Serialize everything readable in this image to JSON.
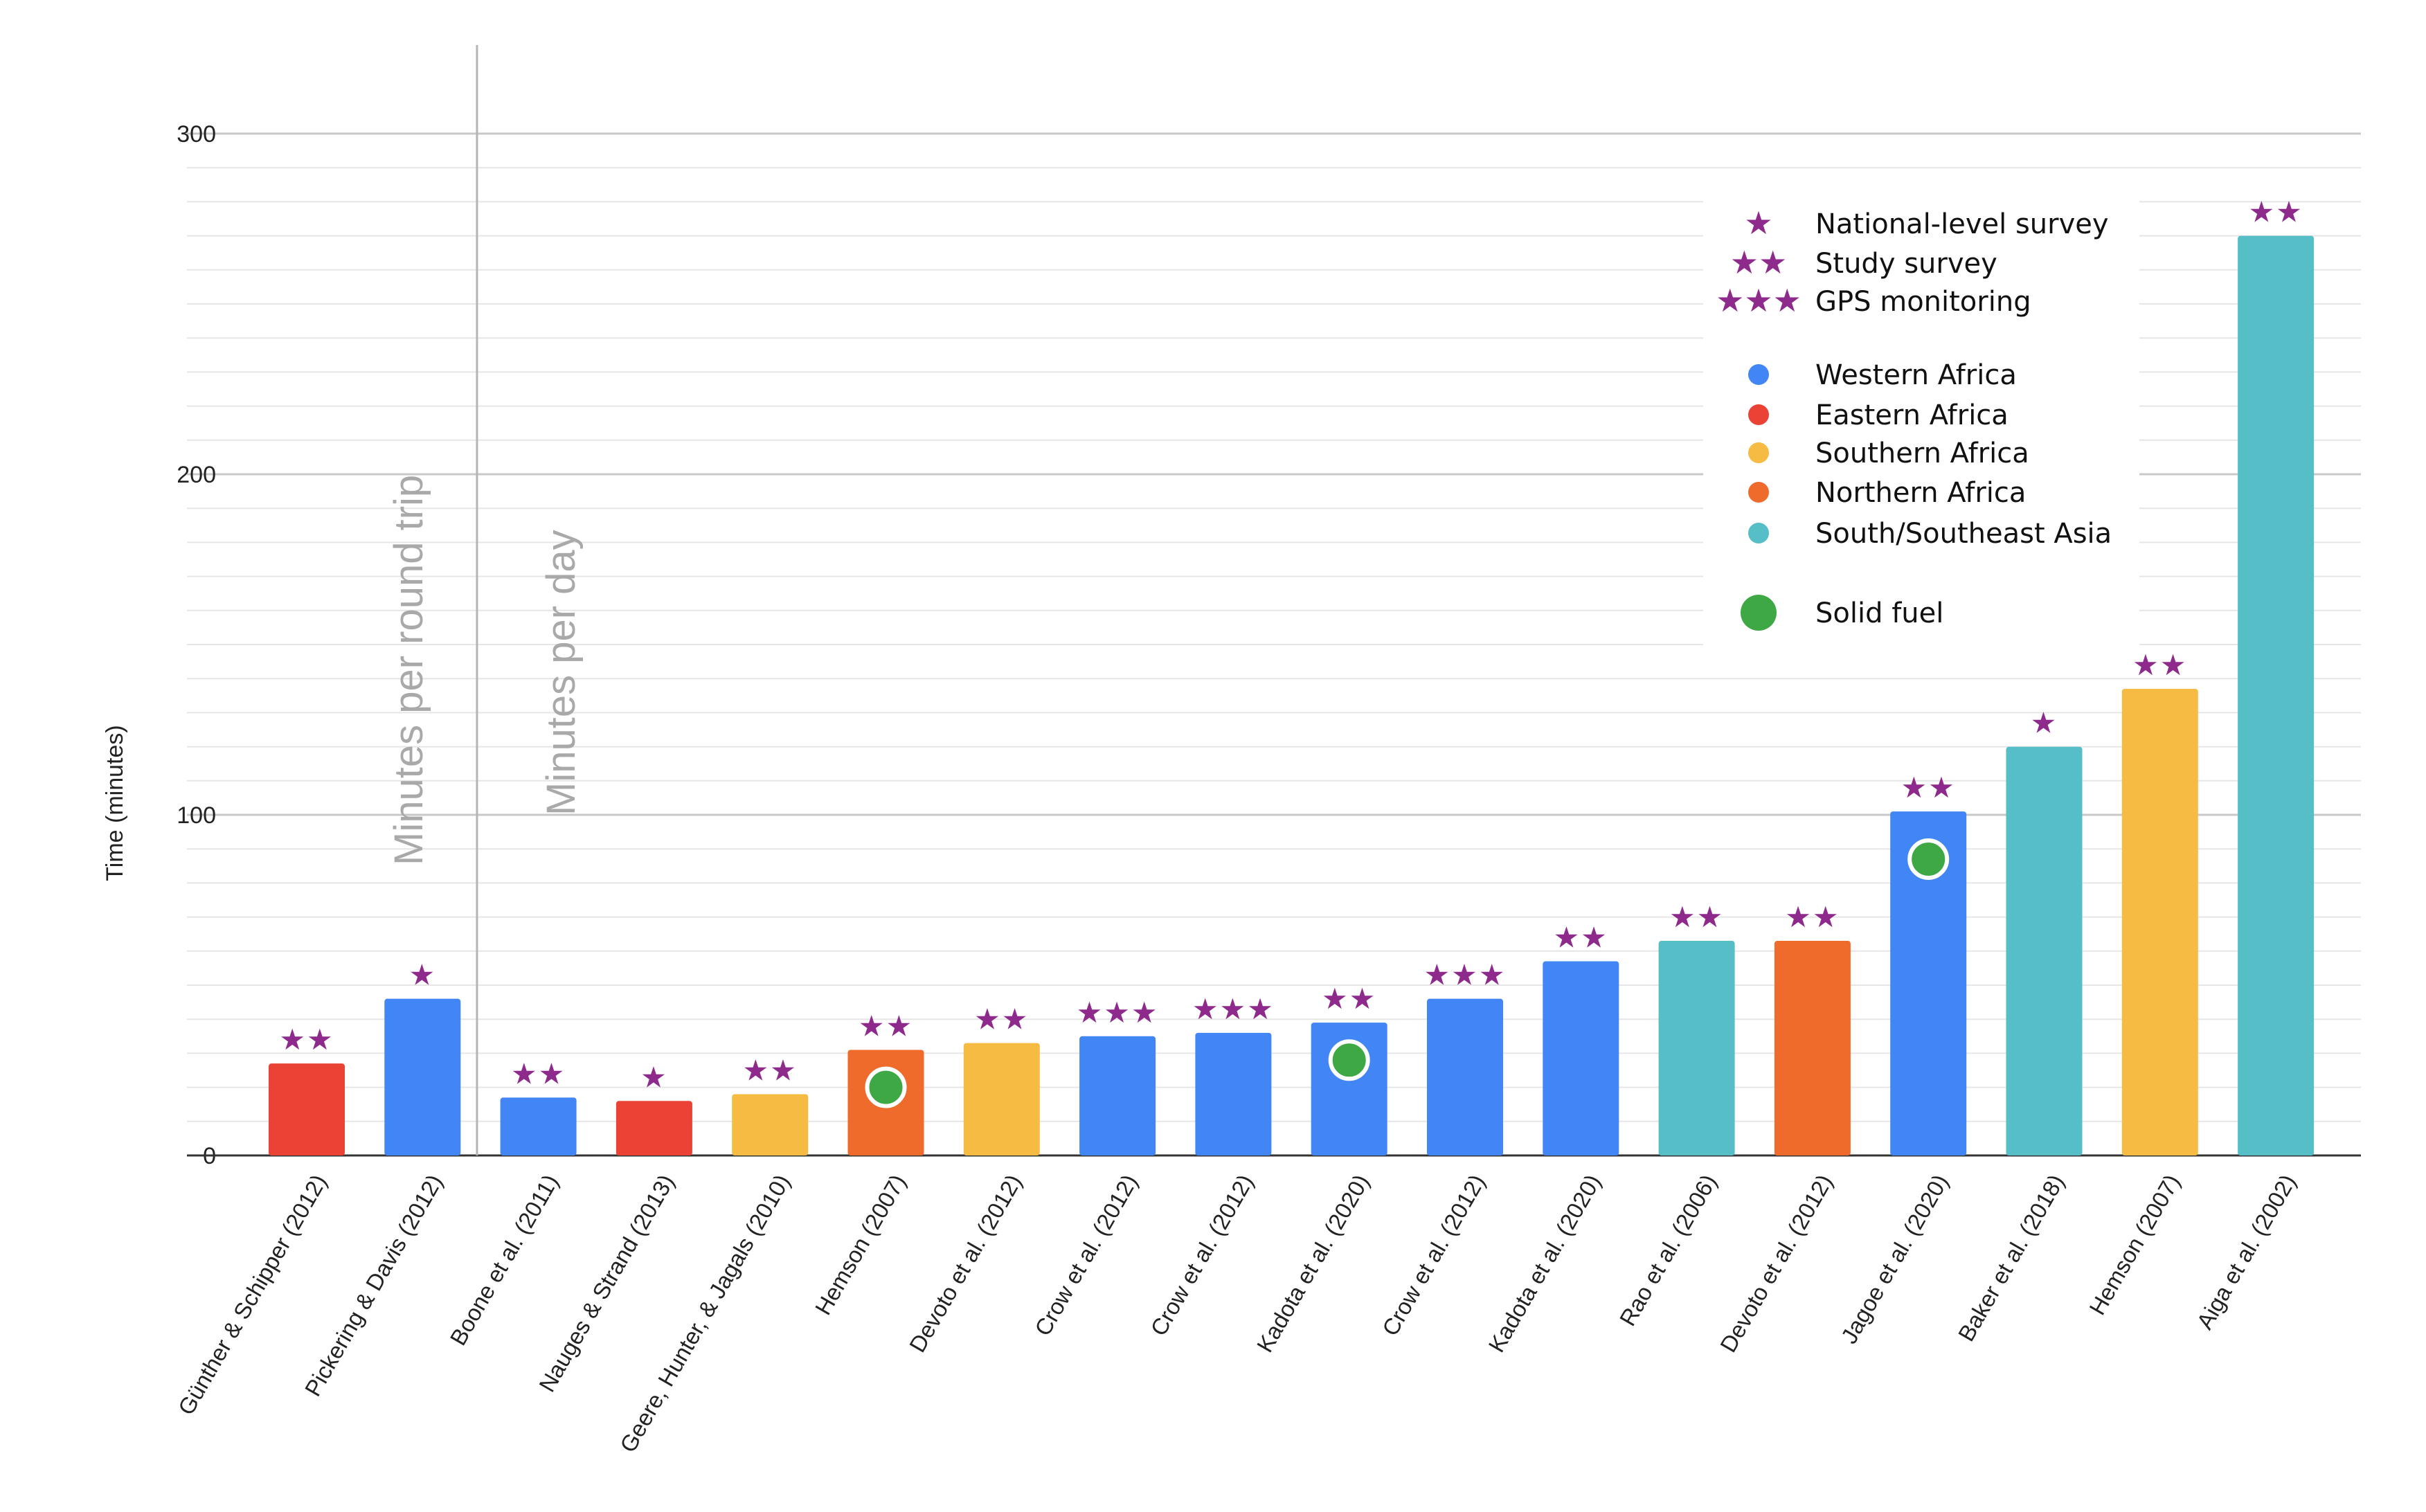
{
  "chart_data": {
    "type": "bar",
    "title": "",
    "xlabel": "",
    "ylabel": "Time (minutes)",
    "ylim": [
      0,
      300
    ],
    "y_ticks": [
      0,
      100,
      200,
      300
    ],
    "grid": true,
    "categories": [
      "Günther & Schipper (2012)",
      "Pickering & Davis (2012)",
      "Boone et al. (2011)",
      "Nauges & Strand (2013)",
      "Geere, Hunter, & Jagals (2010)",
      "Hemson (2007)",
      "Devoto et al. (2012)",
      "Crow et al. (2012)",
      "Crow et al. (2012)",
      "Kadota et al. (2020)",
      "Crow et al. (2012)",
      "Kadota et al. (2020)",
      "Rao et al. (2006)",
      "Devoto et al. (2012)",
      "Jagoe et al. (2020)",
      "Baker et al. (2018)",
      "Hemson (2007)",
      "Aiga et al. (2002)"
    ],
    "values": [
      27,
      46,
      17,
      16,
      18,
      31,
      33,
      35,
      36,
      39,
      46,
      57,
      63,
      63,
      101,
      120,
      137,
      270
    ],
    "regions": [
      "eastern",
      "western",
      "western",
      "eastern",
      "southern",
      "northern",
      "southern",
      "western",
      "western",
      "western",
      "western",
      "western",
      "asia",
      "northern",
      "western",
      "asia",
      "southern",
      "asia"
    ],
    "methods": [
      "★★",
      "★",
      "★★",
      "★",
      "★★",
      "★★",
      "★★",
      "★★★",
      "★★★",
      "★★",
      "★★★",
      "★★",
      "★★",
      "★★",
      "★★",
      "★",
      "★★",
      "★★"
    ],
    "solid_fuel": [
      null,
      null,
      null,
      null,
      null,
      20,
      null,
      null,
      null,
      28,
      null,
      null,
      null,
      null,
      87,
      null,
      null,
      null
    ],
    "region_colors": {
      "western": "#4285f4",
      "eastern": "#ea4335",
      "southern": "#f6bb42",
      "northern": "#ee6b2b",
      "asia": "#56bec6"
    },
    "star_color": "#8e2a8c",
    "solid_fuel_color": "#3ea845",
    "section_labels": [
      "Minutes per round trip",
      "Minutes per day"
    ],
    "section_divider_after_index": 1,
    "legend": {
      "placement": "top-right",
      "methods": [
        {
          "symbol": "★",
          "label": "National-level survey"
        },
        {
          "symbol": "★★",
          "label": "Study survey"
        },
        {
          "symbol": "★★★",
          "label": "GPS monitoring"
        }
      ],
      "regions": [
        {
          "key": "western",
          "label": "Western Africa"
        },
        {
          "key": "eastern",
          "label": "Eastern Africa"
        },
        {
          "key": "southern",
          "label": "Southern Africa"
        },
        {
          "key": "northern",
          "label": "Northern Africa"
        },
        {
          "key": "asia",
          "label": "South/Southeast Asia"
        }
      ],
      "solid_fuel": "Solid fuel"
    }
  }
}
